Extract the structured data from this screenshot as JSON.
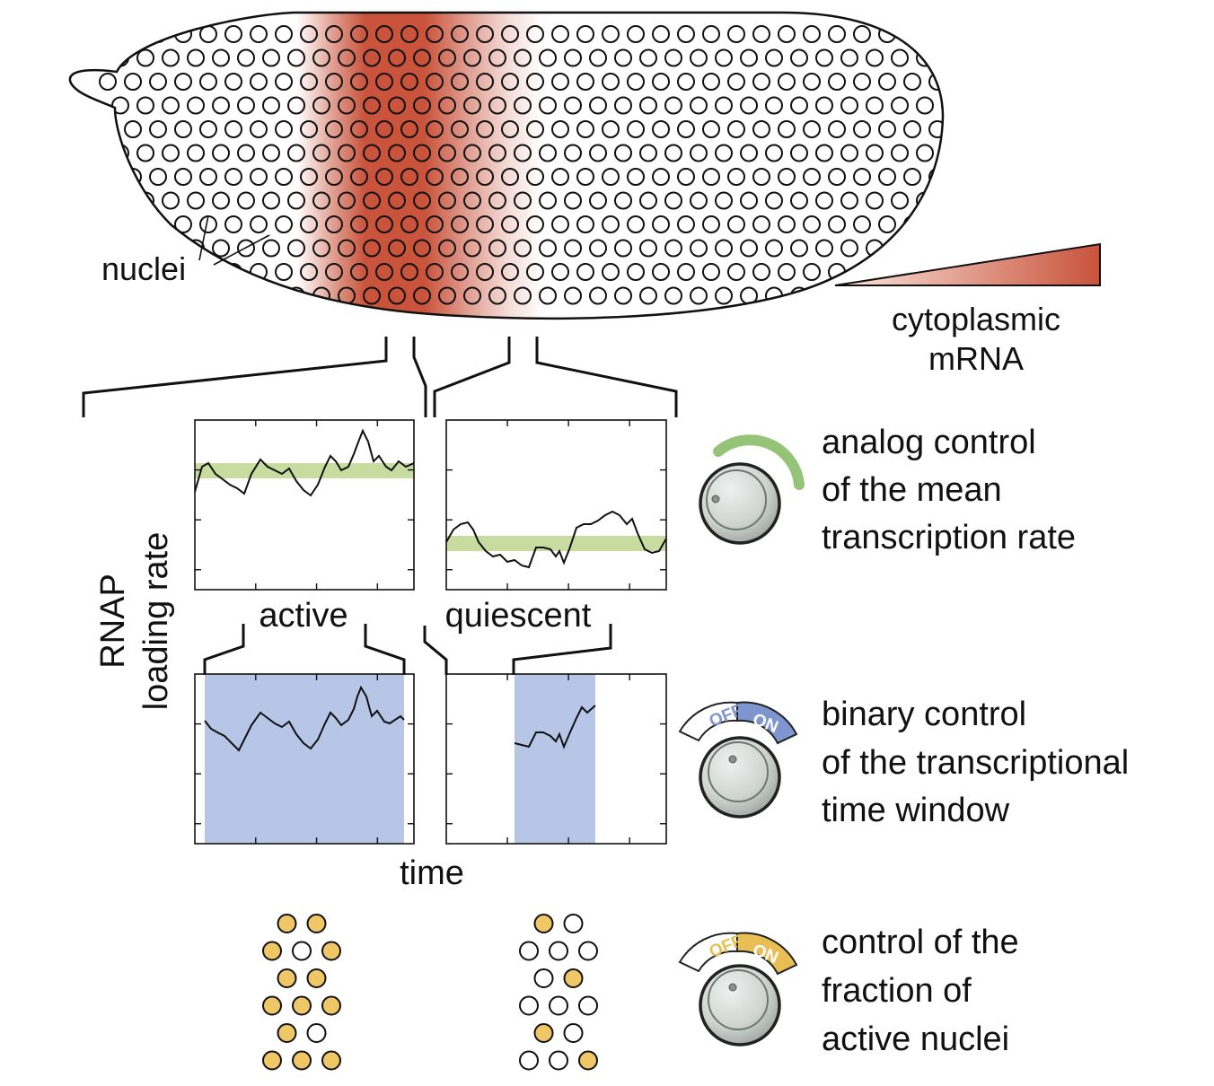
{
  "labels": {
    "nuclei": "nuclei",
    "mrna_legend": [
      "cytoplasmic",
      "mRNA"
    ],
    "y_axis": [
      "RNAP",
      "loading rate"
    ],
    "x_axis": "time",
    "active": "active",
    "quiescent": "quiescent"
  },
  "controls": [
    {
      "id": "analog",
      "lines": [
        "analog control",
        "of the mean",
        "transcription rate"
      ]
    },
    {
      "id": "binary",
      "lines": [
        "binary control",
        "of the transcriptional",
        "time window"
      ],
      "off": "OFF",
      "on": "ON"
    },
    {
      "id": "fraction",
      "lines": [
        "control of the",
        "fraction of",
        "active nuclei"
      ],
      "off": "OFF",
      "on": "ON"
    }
  ],
  "colors": {
    "mrna": "#c9533b",
    "mean_band": "#c8dca0",
    "window": "#b7c5e6",
    "active_nucleus": "#efc766",
    "green_arc": "#8abd68",
    "binary_on": "#7f95cf",
    "fraction_on": "#e9bf55",
    "knob": "#cfd4d1"
  },
  "nuclei_patterns": {
    "active": [
      [
        1,
        1
      ],
      [
        1,
        0,
        1
      ],
      [
        1,
        1
      ],
      [
        1,
        1,
        1
      ],
      [
        1,
        0
      ],
      [
        1,
        1,
        1
      ]
    ],
    "quiescent": [
      [
        1,
        0
      ],
      [
        0,
        0,
        0
      ],
      [
        0,
        1
      ],
      [
        0,
        0,
        0
      ],
      [
        1,
        0
      ],
      [
        0,
        0,
        1
      ]
    ]
  }
}
